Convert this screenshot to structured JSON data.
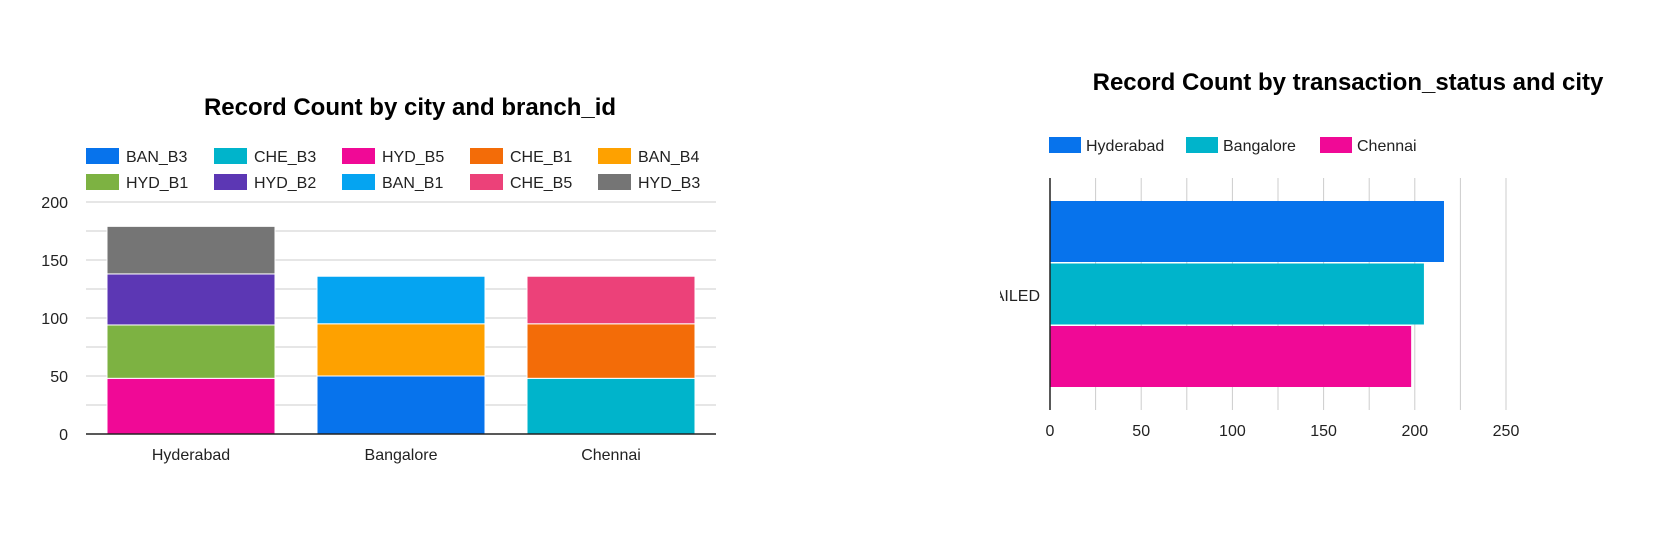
{
  "chart_data": [
    {
      "type": "bar",
      "stacked": true,
      "title": "Record Count by city and branch_id",
      "categories": [
        "Hyderabad",
        "Bangalore",
        "Chennai"
      ],
      "series": [
        {
          "name": "BAN_B3",
          "color": "#0773ec",
          "values": [
            0,
            50,
            0
          ]
        },
        {
          "name": "CHE_B3",
          "color": "#00b4cb",
          "values": [
            0,
            0,
            48
          ]
        },
        {
          "name": "HYD_B5",
          "color": "#f00996",
          "values": [
            48,
            0,
            0
          ]
        },
        {
          "name": "CHE_B1",
          "color": "#f36c08",
          "values": [
            0,
            0,
            47
          ]
        },
        {
          "name": "BAN_B4",
          "color": "#fea100",
          "values": [
            0,
            45,
            0
          ]
        },
        {
          "name": "HYD_B1",
          "color": "#7db242",
          "values": [
            46,
            0,
            0
          ]
        },
        {
          "name": "HYD_B2",
          "color": "#5c37b4",
          "values": [
            44,
            0,
            0
          ]
        },
        {
          "name": "BAN_B1",
          "color": "#05a4f1",
          "values": [
            0,
            41,
            0
          ]
        },
        {
          "name": "CHE_B5",
          "color": "#ec4179",
          "values": [
            0,
            0,
            41
          ]
        },
        {
          "name": "HYD_B3",
          "color": "#757575",
          "values": [
            41,
            0,
            0
          ]
        }
      ],
      "yticks": [
        "0",
        "50",
        "100",
        "150",
        "200"
      ],
      "ylim": [
        0,
        200
      ],
      "grid": true,
      "legend_position": "top"
    },
    {
      "type": "bar",
      "orientation": "horizontal",
      "title": "Record Count by transaction_status and city",
      "categories": [
        "FAILED"
      ],
      "series": [
        {
          "name": "Hyderabad",
          "color": "#0773ec",
          "values": [
            216
          ]
        },
        {
          "name": "Bangalore",
          "color": "#00b4cb",
          "values": [
            205
          ]
        },
        {
          "name": "Chennai",
          "color": "#f00996",
          "values": [
            198
          ]
        }
      ],
      "xticks": [
        "0",
        "50",
        "100",
        "150",
        "200",
        "250"
      ],
      "xlim": [
        0,
        250
      ],
      "grid": true,
      "legend_position": "top"
    }
  ]
}
